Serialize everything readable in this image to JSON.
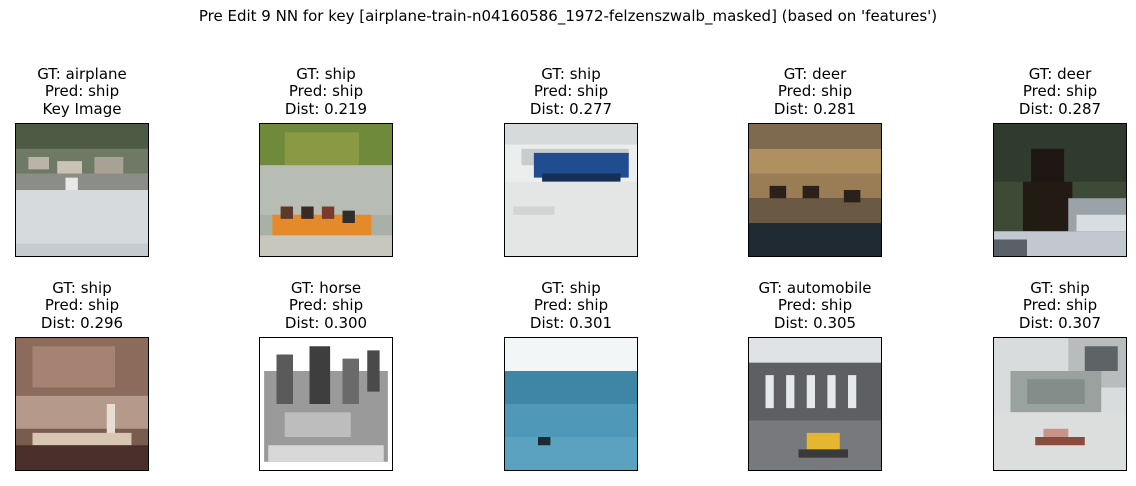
{
  "title": "Pre Edit 9 NN for key [airplane-train-n04160586_1972-felzenszwalb_masked] (based on 'features')",
  "panels": [
    {
      "gt": "GT: airplane",
      "pred": "Pred: ship",
      "extra": "Key Image",
      "image": "grey-runway-with-trees"
    },
    {
      "gt": "GT: ship",
      "pred": "Pred: ship",
      "extra": "Dist: 0.219",
      "image": "orange-boat-people"
    },
    {
      "gt": "GT: ship",
      "pred": "Pred: ship",
      "extra": "Dist: 0.277",
      "image": "blue-boat-snow"
    },
    {
      "gt": "GT: deer",
      "pred": "Pred: ship",
      "extra": "Dist: 0.281",
      "image": "deer-silhouettes-sunset"
    },
    {
      "gt": "GT: deer",
      "pred": "Pred: ship",
      "extra": "Dist: 0.287",
      "image": "dark-figure-forest"
    },
    {
      "gt": "GT: ship",
      "pred": "Pred: ship",
      "extra": "Dist: 0.296",
      "image": "vintage-boat"
    },
    {
      "gt": "GT: horse",
      "pred": "Pred: ship",
      "extra": "Dist: 0.300",
      "image": "grayscale-sketch"
    },
    {
      "gt": "GT: ship",
      "pred": "Pred: ship",
      "extra": "Dist: 0.301",
      "image": "blue-sea"
    },
    {
      "gt": "GT: automobile",
      "pred": "Pred: ship",
      "extra": "Dist: 0.305",
      "image": "aqueduct-yellow-car"
    },
    {
      "gt": "GT: ship",
      "pred": "Pred: ship",
      "extra": "Dist: 0.307",
      "image": "misty-lake-boat"
    }
  ]
}
